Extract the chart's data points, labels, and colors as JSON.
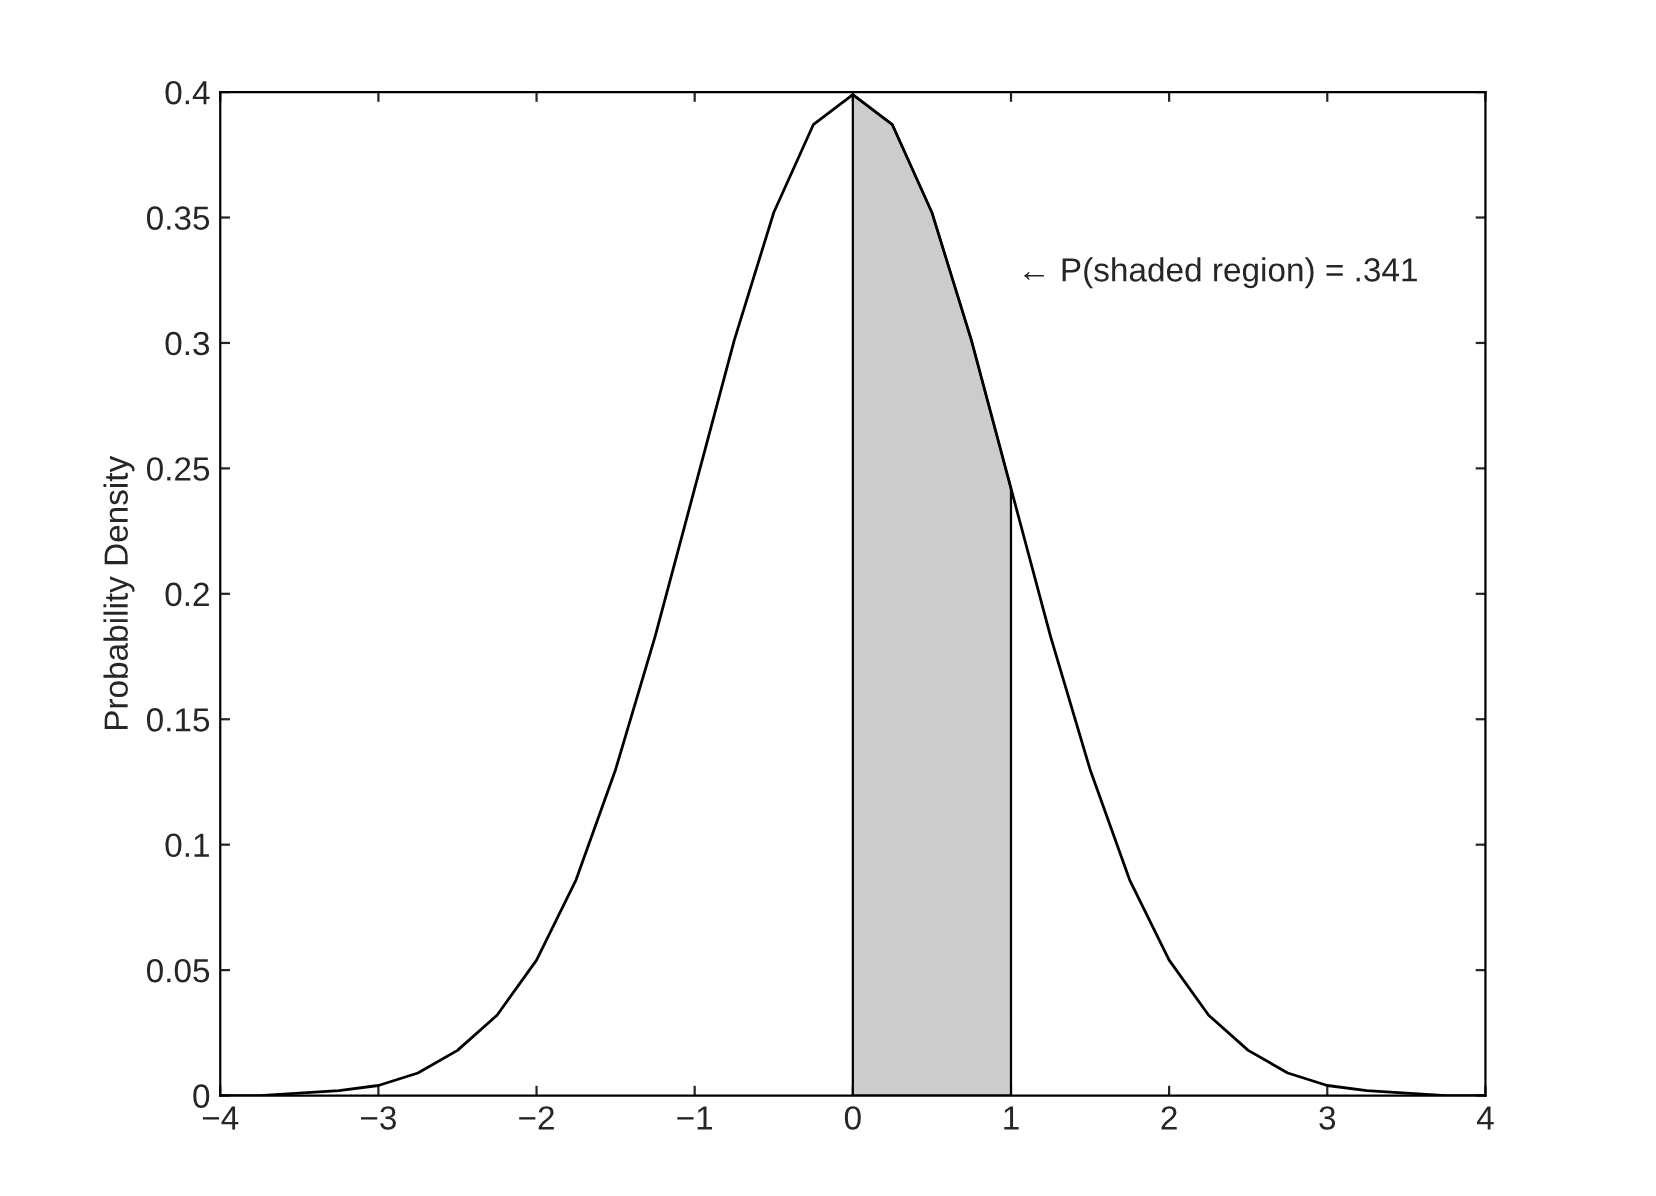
{
  "chart_data": {
    "type": "line",
    "ylabel": "Probability Density",
    "annotations": [
      "← P(shaded region) = .341"
    ],
    "series": [
      {
        "color": "#000000",
        "x": [
          -4,
          -3.75,
          -3.5,
          -3.25,
          -3,
          -2.75,
          -2.5,
          -2.25,
          -2,
          -1.75,
          -1.5,
          -1.25,
          -1,
          -0.75,
          -0.5,
          -0.25,
          0,
          0.25,
          0.5,
          0.75,
          1,
          1.25,
          1.5,
          1.75,
          2,
          2.25,
          2.5,
          2.75,
          3,
          3.25,
          3.5,
          3.75,
          4
        ],
        "values": [
          0.0,
          0.0,
          0.001,
          0.002,
          0.004,
          0.009,
          0.018,
          0.032,
          0.054,
          0.086,
          0.13,
          0.183,
          0.242,
          0.301,
          0.352,
          0.387,
          0.399,
          0.387,
          0.352,
          0.301,
          0.242,
          0.183,
          0.13,
          0.086,
          0.054,
          0.032,
          0.018,
          0.009,
          0.004,
          0.002,
          0.001,
          0.0,
          0.0
        ]
      },
      {
        "type": "area",
        "color": "#cccccc",
        "x": [
          0,
          0.25,
          0.5,
          0.75,
          1
        ],
        "values": [
          0.399,
          0.387,
          0.352,
          0.301,
          0.242
        ]
      }
    ],
    "xlim": [
      -4,
      4
    ],
    "xticks": [
      {
        "value": -4,
        "label": "−4"
      },
      {
        "value": -3,
        "label": "−3"
      },
      {
        "value": -2,
        "label": "−2"
      },
      {
        "value": -1,
        "label": "−1"
      },
      0,
      1,
      2,
      3,
      4
    ],
    "ylim": [
      0,
      0.4
    ],
    "yticks": [
      0,
      0.05,
      0.1,
      0.15,
      0.2,
      0.25,
      0.3,
      0.35,
      0.4
    ],
    "grid": false
  }
}
